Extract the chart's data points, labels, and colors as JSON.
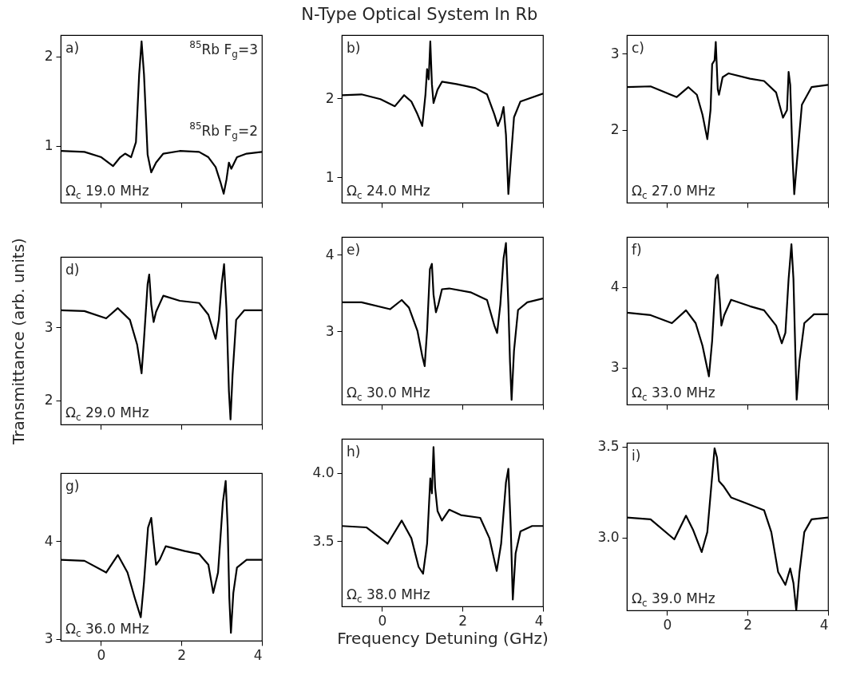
{
  "chart_data": [
    {
      "type": "line",
      "color": "#000000",
      "xlim": [
        -1,
        4
      ],
      "xticks": [
        0,
        2,
        4
      ],
      "ylim": [
        0.36,
        2.24
      ],
      "yticks": [
        1,
        2
      ],
      "tick_labels": "y",
      "annotations": [
        "a)",
        "Ω$_{c}$ 19.0 MHz",
        "$^{85}$Rb F$_{g}$=3",
        "$^{85}$Rb F$_{g}$=2"
      ],
      "x": [
        -1.0,
        -0.41,
        0.01,
        0.3,
        0.48,
        0.6,
        0.75,
        0.87,
        0.95,
        1.01,
        1.07,
        1.16,
        1.25,
        1.37,
        1.55,
        1.96,
        2.44,
        2.67,
        2.85,
        2.97,
        3.05,
        3.12,
        3.18,
        3.24,
        3.38,
        3.62,
        4.0
      ],
      "values": [
        0.94,
        0.93,
        0.87,
        0.77,
        0.87,
        0.91,
        0.87,
        1.04,
        1.8,
        2.17,
        1.8,
        0.9,
        0.7,
        0.81,
        0.91,
        0.94,
        0.93,
        0.87,
        0.76,
        0.59,
        0.46,
        0.62,
        0.81,
        0.74,
        0.87,
        0.91,
        0.93
      ]
    },
    {
      "type": "line",
      "title": "N-Type Optical System In Rb",
      "color": "#000000",
      "xlim": [
        -1,
        4
      ],
      "xticks": [
        0,
        2,
        4
      ],
      "ylim": [
        0.68,
        2.8
      ],
      "yticks": [
        1,
        2
      ],
      "tick_labels": "y",
      "annotations": [
        "b)",
        "Ω$_{c}$ 24.0 MHz"
      ],
      "x": [
        -1.0,
        -0.51,
        -0.04,
        0.32,
        0.55,
        0.73,
        0.88,
        1.0,
        1.08,
        1.12,
        1.16,
        1.2,
        1.24,
        1.28,
        1.38,
        1.49,
        1.85,
        2.32,
        2.61,
        2.79,
        2.88,
        2.96,
        3.02,
        3.08,
        3.14,
        3.2,
        3.28,
        3.44,
        4.0
      ],
      "values": [
        2.04,
        2.05,
        1.99,
        1.9,
        2.04,
        1.96,
        1.8,
        1.65,
        2.05,
        2.37,
        2.24,
        2.72,
        2.18,
        1.94,
        2.11,
        2.21,
        2.18,
        2.13,
        2.05,
        1.8,
        1.65,
        1.76,
        1.89,
        1.54,
        0.79,
        1.22,
        1.76,
        1.96,
        2.06
      ]
    },
    {
      "type": "line",
      "color": "#000000",
      "xlim": [
        -1,
        4
      ],
      "xticks": [
        0,
        2,
        4
      ],
      "ylim": [
        1.05,
        3.24
      ],
      "yticks": [
        2,
        3
      ],
      "tick_labels": "y",
      "annotations": [
        "c)",
        "Ω$_{c}$ 27.0 MHz"
      ],
      "x": [
        -1.0,
        -0.41,
        0.24,
        0.53,
        0.74,
        0.88,
        1.0,
        1.08,
        1.12,
        1.18,
        1.21,
        1.26,
        1.29,
        1.38,
        1.53,
        2.06,
        2.41,
        2.71,
        2.88,
        2.98,
        3.02,
        3.06,
        3.12,
        3.16,
        3.24,
        3.35,
        3.59,
        4.0
      ],
      "values": [
        2.56,
        2.57,
        2.43,
        2.56,
        2.46,
        2.2,
        1.88,
        2.26,
        2.86,
        2.91,
        3.15,
        2.53,
        2.46,
        2.69,
        2.74,
        2.67,
        2.64,
        2.49,
        2.16,
        2.26,
        2.76,
        2.59,
        1.61,
        1.16,
        1.67,
        2.33,
        2.56,
        2.59
      ]
    },
    {
      "type": "line",
      "ylabel": "Transmittance (arb. units)",
      "color": "#000000",
      "xlim": [
        -1,
        4
      ],
      "xticks": [
        0,
        2,
        4
      ],
      "ylim": [
        1.67,
        3.96
      ],
      "yticks": [
        2,
        3
      ],
      "tick_labels": "y",
      "annotations": [
        "d)",
        "Ω$_{c}$ 29.0 MHz"
      ],
      "x": [
        -1.0,
        -0.41,
        0.13,
        0.42,
        0.72,
        0.9,
        1.01,
        1.07,
        1.16,
        1.2,
        1.25,
        1.31,
        1.37,
        1.55,
        1.96,
        2.44,
        2.67,
        2.85,
        2.93,
        3.0,
        3.06,
        3.12,
        3.18,
        3.22,
        3.27,
        3.36,
        3.56,
        4.0
      ],
      "values": [
        3.23,
        3.22,
        3.12,
        3.26,
        3.1,
        2.76,
        2.37,
        2.83,
        3.59,
        3.72,
        3.31,
        3.07,
        3.21,
        3.43,
        3.36,
        3.33,
        3.17,
        2.84,
        3.1,
        3.59,
        3.86,
        3.24,
        2.13,
        1.74,
        2.34,
        3.1,
        3.23,
        3.23
      ]
    },
    {
      "type": "line",
      "color": "#000000",
      "xlim": [
        -1,
        4
      ],
      "xticks": [
        0,
        2,
        4
      ],
      "ylim": [
        2.05,
        4.23
      ],
      "yticks": [
        3,
        4
      ],
      "tick_labels": "y",
      "annotations": [
        "e)",
        "Ω$_{c}$ 30.0 MHz"
      ],
      "x": [
        -1.0,
        -0.51,
        0.2,
        0.49,
        0.67,
        0.88,
        1.0,
        1.06,
        1.12,
        1.19,
        1.24,
        1.28,
        1.34,
        1.4,
        1.49,
        1.67,
        2.2,
        2.61,
        2.79,
        2.86,
        2.94,
        3.02,
        3.08,
        3.14,
        3.18,
        3.22,
        3.28,
        3.38,
        3.61,
        4.0
      ],
      "values": [
        3.38,
        3.38,
        3.29,
        3.41,
        3.31,
        3.01,
        2.68,
        2.55,
        3.01,
        3.81,
        3.88,
        3.48,
        3.25,
        3.35,
        3.55,
        3.56,
        3.51,
        3.41,
        3.08,
        2.98,
        3.35,
        3.95,
        4.15,
        3.35,
        2.61,
        2.11,
        2.75,
        3.28,
        3.38,
        3.43
      ]
    },
    {
      "type": "line",
      "color": "#000000",
      "xlim": [
        -1,
        4
      ],
      "xticks": [
        0,
        2,
        4
      ],
      "ylim": [
        2.54,
        4.62
      ],
      "yticks": [
        3,
        4
      ],
      "tick_labels": "y",
      "annotations": [
        "f)",
        "Ω$_{c}$ 33.0 MHz"
      ],
      "x": [
        -1.0,
        -0.41,
        0.12,
        0.47,
        0.71,
        0.88,
        1.04,
        1.12,
        1.21,
        1.26,
        1.31,
        1.35,
        1.42,
        1.59,
        2.06,
        2.41,
        2.71,
        2.85,
        2.94,
        3.02,
        3.09,
        3.14,
        3.19,
        3.22,
        3.29,
        3.41,
        3.65,
        4.0
      ],
      "values": [
        3.68,
        3.65,
        3.55,
        3.71,
        3.55,
        3.27,
        2.89,
        3.33,
        4.1,
        4.15,
        3.84,
        3.52,
        3.65,
        3.84,
        3.76,
        3.71,
        3.52,
        3.3,
        3.43,
        4.1,
        4.53,
        4.1,
        3.14,
        2.6,
        3.08,
        3.55,
        3.66,
        3.66
      ]
    },
    {
      "type": "line",
      "color": "#000000",
      "xlim": [
        -1,
        4
      ],
      "xticks": [
        0,
        2,
        4
      ],
      "ylim": [
        2.98,
        4.7
      ],
      "yticks": [
        3,
        4
      ],
      "annotations": [
        "g)",
        "Ω$_{c}$ 36.0 MHz"
      ],
      "x": [
        -1.0,
        -0.41,
        0.13,
        0.42,
        0.66,
        0.84,
        0.99,
        1.07,
        1.17,
        1.25,
        1.31,
        1.37,
        1.46,
        1.61,
        2.08,
        2.44,
        2.67,
        2.79,
        2.91,
        3.03,
        3.1,
        3.15,
        3.19,
        3.23,
        3.29,
        3.38,
        3.62,
        4.0
      ],
      "values": [
        3.81,
        3.8,
        3.68,
        3.86,
        3.68,
        3.42,
        3.22,
        3.58,
        4.14,
        4.24,
        3.99,
        3.76,
        3.81,
        3.95,
        3.9,
        3.87,
        3.76,
        3.47,
        3.68,
        4.4,
        4.62,
        4.14,
        3.42,
        3.06,
        3.47,
        3.73,
        3.81,
        3.81
      ]
    },
    {
      "type": "line",
      "xlabel": "Frequency Detuning (GHz)",
      "color": "#000000",
      "xlim": [
        -1,
        4
      ],
      "xticks": [
        0,
        2,
        4
      ],
      "ylim": [
        3.02,
        4.25
      ],
      "yticks": [
        {
          "value": 3.5,
          "label": "3.5"
        },
        {
          "value": 4,
          "label": "4.0"
        }
      ],
      "annotations": [
        "h)",
        "Ω$_{c}$ 38.0 MHz"
      ],
      "x": [
        -1.0,
        -0.39,
        0.14,
        0.49,
        0.73,
        0.91,
        1.02,
        1.12,
        1.2,
        1.24,
        1.28,
        1.32,
        1.38,
        1.49,
        1.67,
        1.96,
        2.44,
        2.67,
        2.85,
        2.96,
        3.08,
        3.14,
        3.2,
        3.25,
        3.32,
        3.44,
        3.73,
        4.0
      ],
      "values": [
        3.61,
        3.6,
        3.48,
        3.65,
        3.52,
        3.31,
        3.26,
        3.48,
        3.96,
        3.85,
        4.19,
        3.89,
        3.72,
        3.65,
        3.73,
        3.69,
        3.67,
        3.52,
        3.28,
        3.48,
        3.93,
        4.03,
        3.59,
        3.07,
        3.41,
        3.57,
        3.61,
        3.61
      ]
    },
    {
      "type": "line",
      "color": "#000000",
      "xlim": [
        -1,
        4
      ],
      "xticks": [
        0,
        2,
        4
      ],
      "ylim": [
        2.6,
        3.52
      ],
      "yticks": [
        {
          "value": 3,
          "label": "3.0"
        },
        3.5
      ],
      "annotations": [
        "i)",
        "Ω$_{c}$ 39.0 MHz"
      ],
      "x": [
        -1.0,
        -0.41,
        0.18,
        0.47,
        0.65,
        0.86,
        1.0,
        1.18,
        1.24,
        1.29,
        1.41,
        1.59,
        1.94,
        2.41,
        2.59,
        2.76,
        2.94,
        3.06,
        3.14,
        3.21,
        3.29,
        3.41,
        3.59,
        4.0
      ],
      "values": [
        3.11,
        3.1,
        2.99,
        3.12,
        3.04,
        2.92,
        3.03,
        3.49,
        3.44,
        3.31,
        3.28,
        3.22,
        3.19,
        3.15,
        3.03,
        2.81,
        2.74,
        2.83,
        2.75,
        2.6,
        2.81,
        3.03,
        3.1,
        3.11
      ]
    }
  ]
}
